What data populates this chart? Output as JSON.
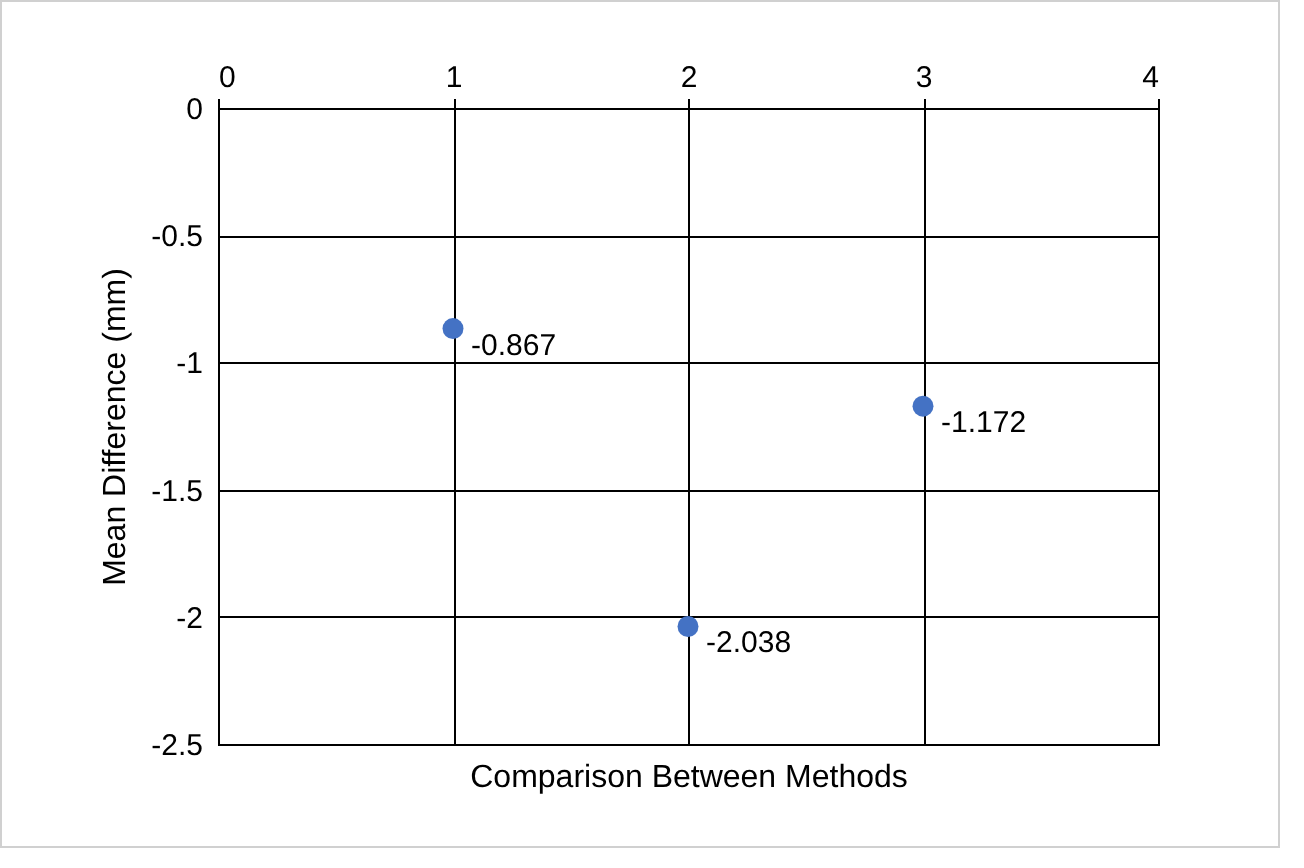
{
  "chart_data": {
    "type": "scatter",
    "xlabel": "Comparison Between Methods",
    "ylabel": "Mean Difference (mm)",
    "x": [
      1,
      2,
      3
    ],
    "series": [
      {
        "color": "#4472c4",
        "values": [
          -0.867,
          -2.038,
          -1.172
        ]
      }
    ],
    "xlim": [
      0,
      4
    ],
    "xticks": [
      0,
      1,
      2,
      3,
      4
    ],
    "ylim": [
      -2.5,
      0
    ],
    "yticks": [
      0,
      -0.5,
      -1,
      -1.5,
      -2,
      -2.5
    ],
    "grid": true,
    "marker": "circle",
    "data_labels": true
  }
}
